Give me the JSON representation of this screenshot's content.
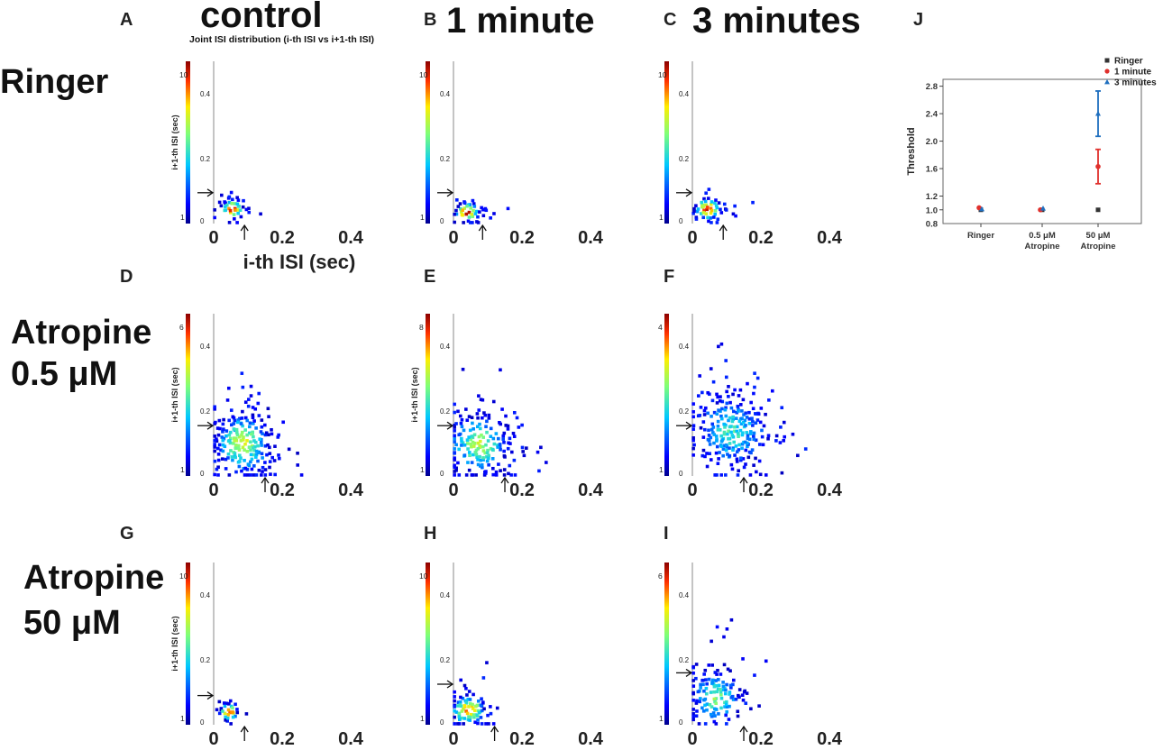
{
  "figure": {
    "column_headers": [
      "control",
      "1 minute",
      "3 minutes"
    ],
    "row_headers": [
      [
        "Ringer"
      ],
      [
        "Atropine",
        "0.5 μM"
      ],
      [
        "Atropine",
        "50 μM"
      ]
    ],
    "subtitle": "Joint ISI distribution (i-th ISI vs i+1-th ISI)"
  },
  "chart_data": [
    {
      "type": "heatmap",
      "label": "A",
      "title": "control",
      "condition": "Ringer",
      "ylabel": "i+1-th ISI (sec)",
      "xlabel": "i-th ISI (sec)",
      "xticks": [
        "0",
        "0.2",
        "0.4"
      ],
      "yticks": [
        "0.2",
        "0.4"
      ],
      "xlim": [
        0,
        0.5
      ],
      "ylim": [
        0,
        0.5
      ],
      "colorbar": {
        "max": "10",
        "min": "1"
      },
      "center": [
        0.055,
        0.045
      ],
      "spread": [
        0.018,
        0.016
      ],
      "count": 70,
      "hot": 0.85,
      "x_marker": 0.09,
      "y_marker": 0.095
    },
    {
      "type": "heatmap",
      "label": "B",
      "title": "1 minute",
      "condition": "Ringer",
      "ylabel": "",
      "xlabel": "",
      "xticks": [
        "0",
        "0.2",
        "0.4"
      ],
      "yticks": [
        "0.2",
        "0.4"
      ],
      "xlim": [
        0,
        0.5
      ],
      "ylim": [
        0,
        0.5
      ],
      "colorbar": {
        "max": "10",
        "min": "1"
      },
      "center": [
        0.04,
        0.035
      ],
      "spread": [
        0.02,
        0.017
      ],
      "count": 75,
      "hot": 0.85,
      "x_marker": 0.085,
      "y_marker": 0.095
    },
    {
      "type": "heatmap",
      "label": "C",
      "title": "3 minutes",
      "condition": "Ringer",
      "ylabel": "",
      "xlabel": "",
      "xticks": [
        "0",
        "0.2",
        "0.4"
      ],
      "yticks": [
        "0.2",
        "0.4"
      ],
      "xlim": [
        0,
        0.5
      ],
      "ylim": [
        0,
        0.5
      ],
      "colorbar": {
        "max": "10",
        "min": "1"
      },
      "center": [
        0.045,
        0.045
      ],
      "spread": [
        0.022,
        0.018
      ],
      "count": 90,
      "hot": 0.85,
      "x_marker": 0.09,
      "y_marker": 0.095
    },
    {
      "type": "heatmap",
      "label": "D",
      "title": "control",
      "condition": "Atropine 0.5 μM",
      "ylabel": "i+1-th ISI (sec)",
      "xlabel": "",
      "xticks": [
        "0",
        "0.2",
        "0.4"
      ],
      "yticks": [
        "0.2",
        "0.4"
      ],
      "xlim": [
        0,
        0.5
      ],
      "ylim": [
        0,
        0.5
      ],
      "colorbar": {
        "max": "6",
        "min": "1"
      },
      "center": [
        0.085,
        0.1
      ],
      "spread": [
        0.045,
        0.05
      ],
      "count": 330,
      "hot": 0.55,
      "x_marker": 0.15,
      "y_marker": 0.155
    },
    {
      "type": "heatmap",
      "label": "E",
      "title": "1 minute",
      "condition": "Atropine 0.5 μM",
      "ylabel": "i+1-th ISI (sec)",
      "xlabel": "",
      "xticks": [
        "0",
        "0.2",
        "0.4"
      ],
      "yticks": [
        "0.2",
        "0.4"
      ],
      "xlim": [
        0,
        0.5
      ],
      "ylim": [
        0,
        0.5
      ],
      "colorbar": {
        "max": "8",
        "min": "1"
      },
      "center": [
        0.075,
        0.095
      ],
      "spread": [
        0.05,
        0.05
      ],
      "count": 280,
      "hot": 0.5,
      "x_marker": 0.15,
      "y_marker": 0.155
    },
    {
      "type": "heatmap",
      "label": "F",
      "title": "3 minutes",
      "condition": "Atropine 0.5 μM",
      "ylabel": "",
      "xlabel": "",
      "xticks": [
        "0",
        "0.2",
        "0.4"
      ],
      "yticks": [
        "0.2",
        "0.4"
      ],
      "xlim": [
        0,
        0.5
      ],
      "ylim": [
        0,
        0.5
      ],
      "colorbar": {
        "max": "4",
        "min": "1"
      },
      "center": [
        0.115,
        0.14
      ],
      "spread": [
        0.055,
        0.06
      ],
      "count": 330,
      "hot": 0.35,
      "x_marker": 0.15,
      "y_marker": 0.155
    },
    {
      "type": "heatmap",
      "label": "G",
      "title": "control",
      "condition": "Atropine 50 μM",
      "ylabel": "i+1-th ISI (sec)",
      "xlabel": "",
      "xticks": [
        "0",
        "0.2",
        "0.4"
      ],
      "yticks": [
        "0.2",
        "0.4"
      ],
      "xlim": [
        0,
        0.5
      ],
      "ylim": [
        0,
        0.5
      ],
      "colorbar": {
        "max": "10",
        "min": "1"
      },
      "center": [
        0.045,
        0.04
      ],
      "spread": [
        0.015,
        0.014
      ],
      "count": 55,
      "hot": 0.85,
      "x_marker": 0.09,
      "y_marker": 0.09
    },
    {
      "type": "heatmap",
      "label": "H",
      "title": "1 minute",
      "condition": "Atropine 50 μM",
      "ylabel": "",
      "xlabel": "",
      "xticks": [
        "0",
        "0.2",
        "0.4"
      ],
      "yticks": [
        "0.2",
        "0.4"
      ],
      "xlim": [
        0,
        0.5
      ],
      "ylim": [
        0,
        0.5
      ],
      "colorbar": {
        "max": "10",
        "min": "1"
      },
      "center": [
        0.045,
        0.045
      ],
      "spread": [
        0.028,
        0.025
      ],
      "count": 150,
      "hot": 0.75,
      "x_marker": 0.12,
      "y_marker": 0.125
    },
    {
      "type": "heatmap",
      "label": "I",
      "title": "3 minutes",
      "condition": "Atropine 50 μM",
      "ylabel": "",
      "xlabel": "",
      "xticks": [
        "0",
        "0.2",
        "0.4"
      ],
      "yticks": [
        "0.2",
        "0.4"
      ],
      "xlim": [
        0,
        0.5
      ],
      "ylim": [
        0,
        0.5
      ],
      "colorbar": {
        "max": "6",
        "min": "1"
      },
      "center": [
        0.07,
        0.085
      ],
      "spread": [
        0.038,
        0.04
      ],
      "count": 200,
      "hot": 0.45,
      "x_marker": 0.15,
      "y_marker": 0.16
    },
    {
      "type": "scatter",
      "label": "J",
      "title": "",
      "ylabel": "Threshold",
      "xlabel": "",
      "categories": [
        "Ringer",
        [
          "0.5 μM",
          "Atropine"
        ],
        [
          "50 μM",
          "Atropine"
        ]
      ],
      "ylim": [
        0.8,
        2.9
      ],
      "yticks": [
        "1.0",
        "1.2",
        "1.6",
        "2.0",
        "2.4",
        "2.8"
      ],
      "legend_position": "top-right",
      "series": [
        {
          "name": "Ringer",
          "color": "#333333",
          "marker": "square",
          "values": [
            1.0,
            1.0,
            1.0
          ],
          "errors": [
            0,
            0,
            0
          ]
        },
        {
          "name": "1 minute",
          "color": "#e0302c",
          "marker": "circle",
          "values": [
            1.03,
            1.0,
            1.63
          ],
          "errors": [
            0.02,
            0.02,
            0.25
          ]
        },
        {
          "name": "3 minutes",
          "color": "#1f6fbf",
          "marker": "triangle",
          "values": [
            1.01,
            1.02,
            2.4
          ],
          "errors": [
            0.01,
            0.01,
            0.33
          ]
        }
      ]
    }
  ]
}
